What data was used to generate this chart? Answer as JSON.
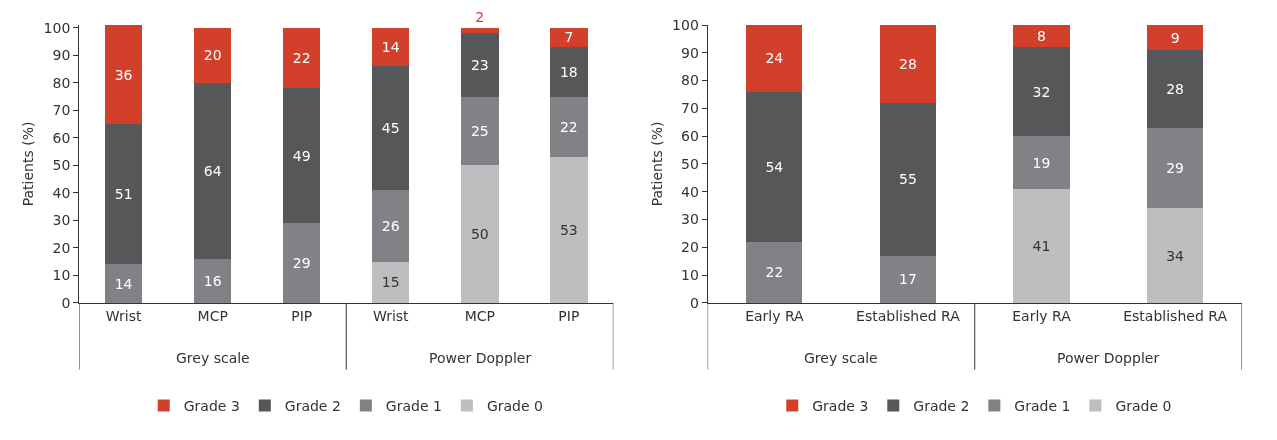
{
  "chart_data": [
    {
      "type": "bar",
      "stacked": true,
      "ylabel": "Patients (%)",
      "categories": [
        "Wrist",
        "MCP",
        "PIP",
        "Wrist",
        "MCP",
        "PIP"
      ],
      "ylim": [
        0,
        101
      ],
      "yticks": [
        0,
        10,
        20,
        30,
        40,
        50,
        60,
        70,
        80,
        90,
        100
      ],
      "data_labels": true,
      "legend": "bottom",
      "annotations": [
        "Grey scale",
        "Power Doppler"
      ],
      "series": [
        {
          "name": "Grade 0",
          "color": "#bcbec0",
          "values": [
            null,
            null,
            null,
            15,
            50,
            53
          ]
        },
        {
          "name": "Grade 1",
          "color": "#808285",
          "values": [
            14,
            16,
            29,
            26,
            25,
            22
          ]
        },
        {
          "name": "Grade 2",
          "color": "#555759",
          "values": [
            51,
            64,
            49,
            45,
            23,
            18
          ]
        },
        {
          "name": "Grade 3",
          "color": "#d2402c",
          "values": [
            36,
            20,
            22,
            14,
            2,
            7
          ]
        }
      ]
    },
    {
      "type": "bar",
      "stacked": true,
      "ylabel": "Patients (%)",
      "categories": [
        "Early RA",
        "Established RA",
        "Early RA",
        "Established RA"
      ],
      "ylim": [
        0,
        100
      ],
      "yticks": [
        0,
        10,
        20,
        30,
        40,
        50,
        60,
        70,
        80,
        90,
        100
      ],
      "data_labels": true,
      "legend": "bottom",
      "annotations": [
        "Grey scale",
        "Power Doppler"
      ],
      "series": [
        {
          "name": "Grade 0",
          "color": "#bcbec0",
          "values": [
            null,
            null,
            41,
            34
          ]
        },
        {
          "name": "Grade 1",
          "color": "#808285",
          "values": [
            22,
            17,
            19,
            29
          ]
        },
        {
          "name": "Grade 2",
          "color": "#555759",
          "values": [
            54,
            55,
            32,
            28
          ]
        },
        {
          "name": "Grade 3",
          "color": "#d2402c",
          "values": [
            24,
            28,
            8,
            9
          ]
        }
      ]
    }
  ]
}
